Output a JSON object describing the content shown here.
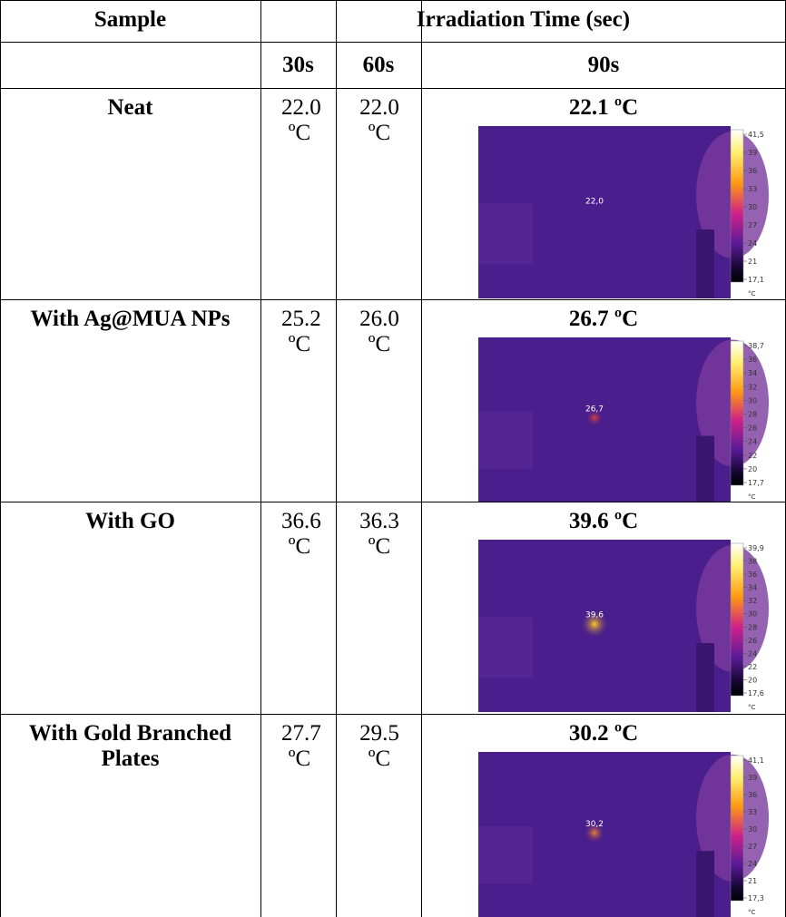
{
  "table": {
    "header": {
      "sample": "Sample",
      "irradiation": "Irradiation Time (sec)",
      "times": [
        "30s",
        "60s",
        "90s"
      ]
    },
    "rows": [
      {
        "sample": "Neat",
        "t30": "22.0 ºC",
        "t60": "22.0 ºC",
        "t90": "22.1 ºC",
        "image": {
          "spot": "22,0",
          "scale": [
            "41,5",
            "39",
            "36",
            "33",
            "30",
            "27",
            "24",
            "21",
            "17,1"
          ],
          "unit": "°C"
        }
      },
      {
        "sample": "With Ag@MUA NPs",
        "t30": "25.2 ºC",
        "t60": "26.0 ºC",
        "t90": "26.7 ºC",
        "image": {
          "spot": "26,7",
          "scale": [
            "38,7",
            "36",
            "34",
            "32",
            "30",
            "28",
            "26",
            "24",
            "22",
            "20",
            "17,7"
          ],
          "unit": "°C"
        }
      },
      {
        "sample": "With GO",
        "t30": "36.6 ºC",
        "t60": "36.3 ºC",
        "t90": "39.6 ºC",
        "image": {
          "spot": "39,6",
          "scale": [
            "39,9",
            "38",
            "36",
            "34",
            "32",
            "30",
            "28",
            "26",
            "24",
            "22",
            "20",
            "17,6"
          ],
          "unit": "°C"
        }
      },
      {
        "sample": "With Gold Branched Plates",
        "t30": "27.7 ºC",
        "t60": "29.5 ºC",
        "t90": "30.2 ºC",
        "image": {
          "spot": "30,2",
          "scale": [
            "41,1",
            "39",
            "36",
            "33",
            "30",
            "27",
            "24",
            "21",
            "17,3"
          ],
          "unit": "°C"
        }
      }
    ]
  }
}
